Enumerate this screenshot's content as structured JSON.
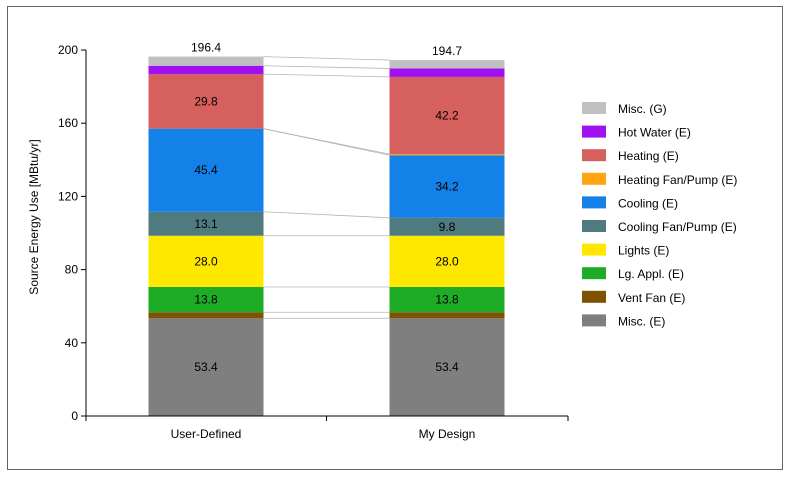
{
  "chart_data": {
    "type": "bar",
    "stacked": true,
    "categories": [
      "User-Defined",
      "My Design"
    ],
    "ylabel": "Source Energy Use [MBtu/yr]",
    "ylim": [
      0,
      200
    ],
    "yticks": [
      0,
      40,
      80,
      120,
      160,
      200
    ],
    "grid": false,
    "legend_position": "right",
    "totals": [
      "196.4",
      "194.7"
    ],
    "series": [
      {
        "name": "Misc. (E)",
        "color": "#7f7f7f",
        "values": [
          53.4,
          53.4
        ],
        "labels": [
          "53.4",
          "53.4"
        ]
      },
      {
        "name": "Vent Fan (E)",
        "color": "#7f5200",
        "values": [
          3.3,
          3.3
        ],
        "labels": [
          "",
          ""
        ]
      },
      {
        "name": "Lg. Appl. (E)",
        "color": "#1eab26",
        "values": [
          13.8,
          13.8
        ],
        "labels": [
          "13.8",
          "13.8"
        ]
      },
      {
        "name": "Lights (E)",
        "color": "#ffe800",
        "values": [
          28.0,
          28.0
        ],
        "labels": [
          "28.0",
          "28.0"
        ]
      },
      {
        "name": "Cooling Fan/Pump (E)",
        "color": "#4e7a80",
        "values": [
          13.1,
          9.8
        ],
        "labels": [
          "13.1",
          "9.8"
        ]
      },
      {
        "name": "Cooling (E)",
        "color": "#1481e8",
        "values": [
          45.4,
          34.2
        ],
        "labels": [
          "45.4",
          "34.2"
        ]
      },
      {
        "name": "Heating Fan/Pump (E)",
        "color": "#ffa412",
        "values": [
          0.0,
          0.6
        ],
        "labels": [
          "",
          ""
        ]
      },
      {
        "name": "Heating (E)",
        "color": "#d5605e",
        "values": [
          29.8,
          42.2
        ],
        "labels": [
          "29.8",
          "42.2"
        ]
      },
      {
        "name": "Hot Water (E)",
        "color": "#a010f0",
        "values": [
          4.6,
          4.6
        ],
        "labels": [
          "",
          ""
        ]
      },
      {
        "name": "Misc. (G)",
        "color": "#c0c0c0",
        "values": [
          5.0,
          4.6
        ],
        "labels": [
          "",
          ""
        ]
      }
    ]
  }
}
